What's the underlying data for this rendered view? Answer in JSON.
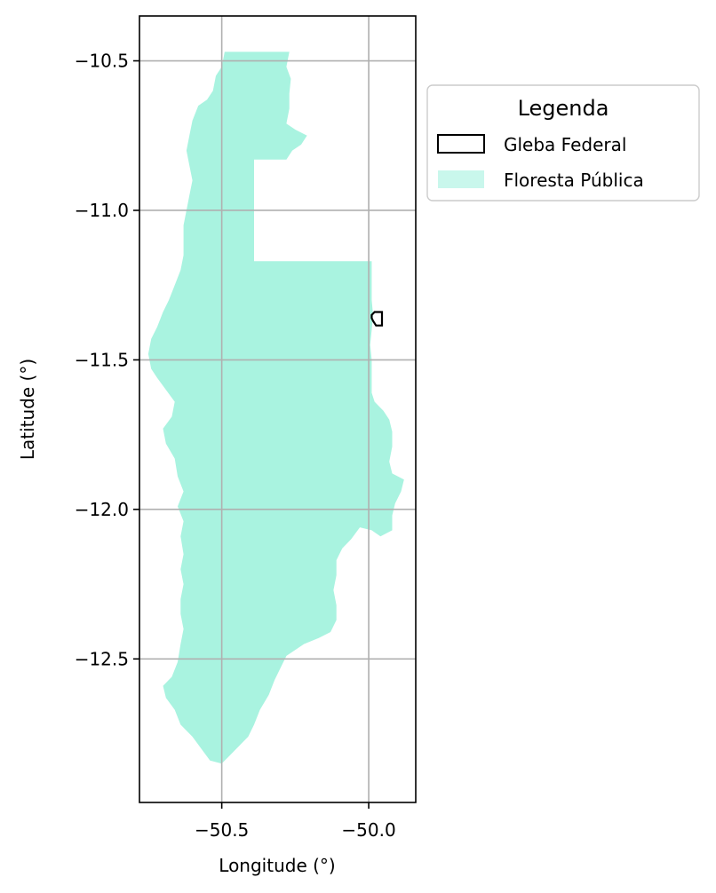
{
  "chart_data": {
    "type": "map",
    "xlabel": "Longitude (°)",
    "ylabel": "Latitude (°)",
    "xlim": [
      -50.78,
      -49.84
    ],
    "ylim": [
      -12.98,
      -10.35
    ],
    "xticks": [
      -50.5,
      -50.0
    ],
    "xtick_labels": [
      "−50.5",
      "−50.0"
    ],
    "yticks": [
      -10.5,
      -11.0,
      -11.5,
      -12.0,
      -12.5
    ],
    "ytick_labels": [
      "−10.5",
      "−11.0",
      "−11.5",
      "−12.0",
      "−12.5"
    ],
    "grid": true,
    "legend": {
      "title": "Legenda",
      "placement": "outside-right-top",
      "entries": [
        {
          "label": "Gleba Federal",
          "style": "outline",
          "color": "#000000"
        },
        {
          "label": "Floresta Pública",
          "style": "fill",
          "color": "#a9f3e0"
        }
      ]
    },
    "layers": {
      "floresta_publica": {
        "name": "Floresta Pública",
        "color": "#a9f3e0",
        "polygon": [
          [
            -50.49,
            -10.47
          ],
          [
            -50.27,
            -10.47
          ],
          [
            -50.28,
            -10.52
          ],
          [
            -50.265,
            -10.56
          ],
          [
            -50.27,
            -10.61
          ],
          [
            -50.27,
            -10.66
          ],
          [
            -50.28,
            -10.71
          ],
          [
            -50.25,
            -10.73
          ],
          [
            -50.21,
            -10.75
          ],
          [
            -50.23,
            -10.78
          ],
          [
            -50.26,
            -10.8
          ],
          [
            -50.28,
            -10.83
          ],
          [
            -50.39,
            -10.83
          ],
          [
            -50.39,
            -11.17
          ],
          [
            -49.99,
            -11.17
          ],
          [
            -49.99,
            -11.3
          ],
          [
            -49.985,
            -11.35
          ],
          [
            -49.99,
            -11.4
          ],
          [
            -49.995,
            -11.45
          ],
          [
            -49.99,
            -11.5
          ],
          [
            -49.99,
            -11.55
          ],
          [
            -49.99,
            -11.61
          ],
          [
            -49.98,
            -11.64
          ],
          [
            -49.95,
            -11.67
          ],
          [
            -49.93,
            -11.7
          ],
          [
            -49.92,
            -11.74
          ],
          [
            -49.92,
            -11.79
          ],
          [
            -49.93,
            -11.84
          ],
          [
            -49.92,
            -11.88
          ],
          [
            -49.88,
            -11.9
          ],
          [
            -49.89,
            -11.94
          ],
          [
            -49.91,
            -11.98
          ],
          [
            -49.92,
            -12.02
          ],
          [
            -49.92,
            -12.07
          ],
          [
            -49.96,
            -12.09
          ],
          [
            -49.99,
            -12.07
          ],
          [
            -50.03,
            -12.06
          ],
          [
            -50.06,
            -12.1
          ],
          [
            -50.09,
            -12.13
          ],
          [
            -50.11,
            -12.17
          ],
          [
            -50.11,
            -12.22
          ],
          [
            -50.12,
            -12.27
          ],
          [
            -50.11,
            -12.32
          ],
          [
            -50.11,
            -12.37
          ],
          [
            -50.13,
            -12.41
          ],
          [
            -50.17,
            -12.43
          ],
          [
            -50.22,
            -12.45
          ],
          [
            -50.28,
            -12.49
          ],
          [
            -50.3,
            -12.53
          ],
          [
            -50.32,
            -12.57
          ],
          [
            -50.34,
            -12.62
          ],
          [
            -50.37,
            -12.67
          ],
          [
            -50.39,
            -12.72
          ],
          [
            -50.41,
            -12.76
          ],
          [
            -50.45,
            -12.8
          ],
          [
            -50.48,
            -12.83
          ],
          [
            -50.5,
            -12.85
          ],
          [
            -50.54,
            -12.84
          ],
          [
            -50.57,
            -12.8
          ],
          [
            -50.6,
            -12.76
          ],
          [
            -50.64,
            -12.72
          ],
          [
            -50.66,
            -12.67
          ],
          [
            -50.69,
            -12.63
          ],
          [
            -50.7,
            -12.59
          ],
          [
            -50.67,
            -12.56
          ],
          [
            -50.65,
            -12.51
          ],
          [
            -50.64,
            -12.45
          ],
          [
            -50.63,
            -12.4
          ],
          [
            -50.64,
            -12.35
          ],
          [
            -50.64,
            -12.3
          ],
          [
            -50.63,
            -12.25
          ],
          [
            -50.64,
            -12.2
          ],
          [
            -50.63,
            -12.15
          ],
          [
            -50.64,
            -12.09
          ],
          [
            -50.63,
            -12.04
          ],
          [
            -50.65,
            -11.99
          ],
          [
            -50.63,
            -11.94
          ],
          [
            -50.65,
            -11.89
          ],
          [
            -50.66,
            -11.83
          ],
          [
            -50.69,
            -11.78
          ],
          [
            -50.7,
            -11.73
          ],
          [
            -50.67,
            -11.69
          ],
          [
            -50.66,
            -11.64
          ],
          [
            -50.69,
            -11.6
          ],
          [
            -50.72,
            -11.56
          ],
          [
            -50.74,
            -11.53
          ],
          [
            -50.75,
            -11.48
          ],
          [
            -50.74,
            -11.43
          ],
          [
            -50.72,
            -11.39
          ],
          [
            -50.7,
            -11.34
          ],
          [
            -50.68,
            -11.3
          ],
          [
            -50.66,
            -11.25
          ],
          [
            -50.64,
            -11.2
          ],
          [
            -50.63,
            -11.15
          ],
          [
            -50.63,
            -11.1
          ],
          [
            -50.63,
            -11.05
          ],
          [
            -50.62,
            -11.0
          ],
          [
            -50.61,
            -10.95
          ],
          [
            -50.6,
            -10.9
          ],
          [
            -50.61,
            -10.85
          ],
          [
            -50.62,
            -10.8
          ],
          [
            -50.61,
            -10.75
          ],
          [
            -50.6,
            -10.7
          ],
          [
            -50.58,
            -10.65
          ],
          [
            -50.55,
            -10.63
          ],
          [
            -50.53,
            -10.6
          ],
          [
            -50.52,
            -10.55
          ],
          [
            -50.5,
            -10.52
          ]
        ]
      },
      "gleba_federal": {
        "name": "Gleba Federal",
        "color": "#000000",
        "polygon": [
          [
            -49.99,
            -11.35
          ],
          [
            -49.98,
            -11.34
          ],
          [
            -49.955,
            -11.34
          ],
          [
            -49.955,
            -11.385
          ],
          [
            -49.975,
            -11.385
          ],
          [
            -49.985,
            -11.37
          ],
          [
            -49.99,
            -11.36
          ]
        ]
      }
    }
  }
}
